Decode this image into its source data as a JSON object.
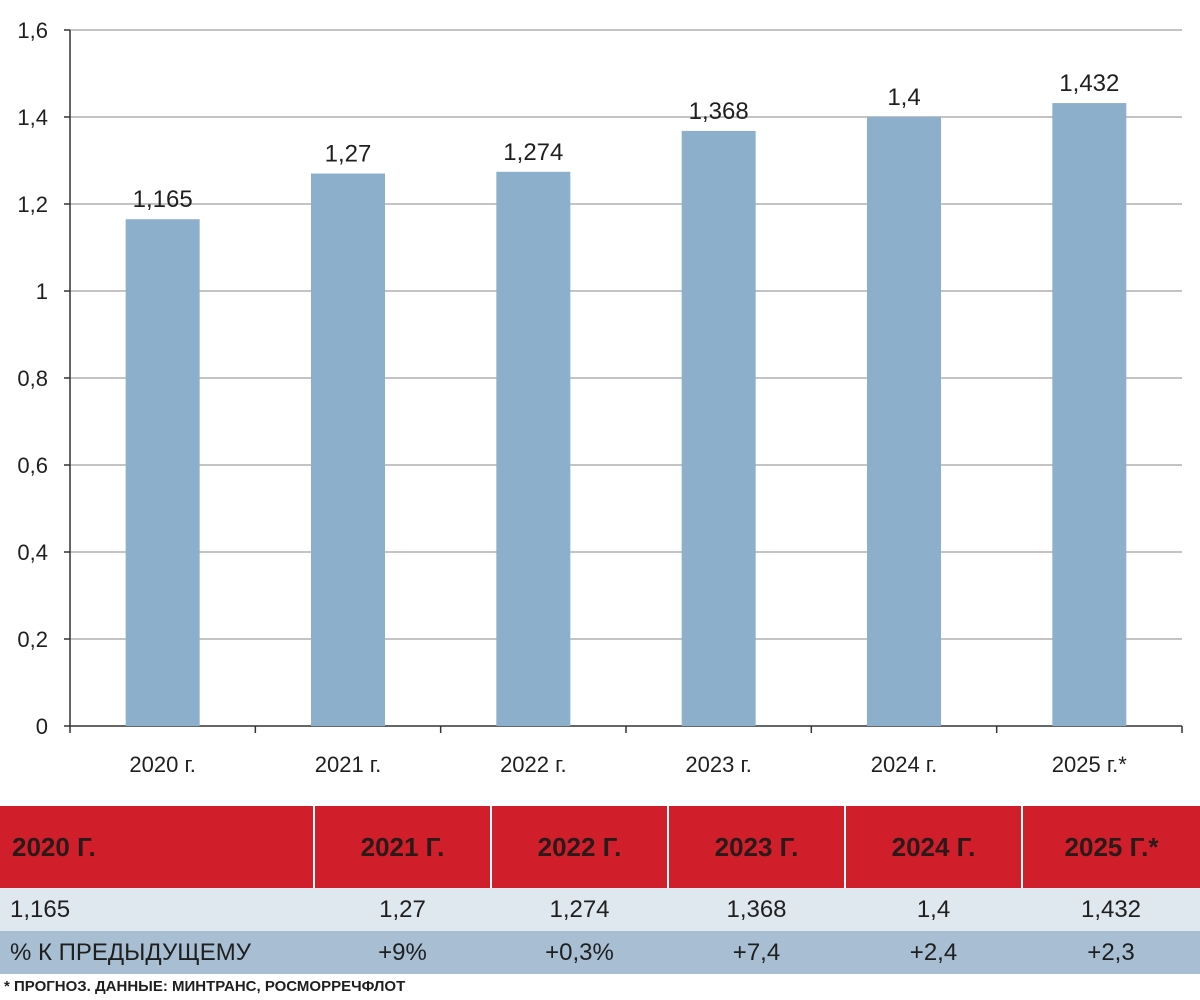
{
  "colors": {
    "bar": "#8cafcb",
    "header": "#d01f2b",
    "row1": "#dfe7ef",
    "row2": "#a8bfd3",
    "grid": "#8a8a8a"
  },
  "chart_data": {
    "type": "bar",
    "categories": [
      "2020 г.",
      "2021 г.",
      "2022 г.",
      "2023 г.",
      "2024 г.",
      "2025 г.*"
    ],
    "values": [
      1.165,
      1.27,
      1.274,
      1.368,
      1.4,
      1.432
    ],
    "value_labels": [
      "1,165",
      "1,27",
      "1,274",
      "1,368",
      "1,4",
      "1,432"
    ],
    "yticks": [
      "0",
      "0,2",
      "0,4",
      "0,6",
      "0,8",
      "1",
      "1,2",
      "1,4",
      "1,6"
    ],
    "ylim": [
      0,
      1.6
    ],
    "grid": true
  },
  "table": {
    "headers": [
      "2020 Г.",
      "2021 Г.",
      "2022 Г.",
      "2023 Г.",
      "2024 Г.",
      "2025 Г.*"
    ],
    "values": [
      "1,165",
      "1,27",
      "1,274",
      "1,368",
      "1,4",
      "1,432"
    ],
    "pct_label": "% К ПРЕДЫДУЩЕМУ",
    "pct_values": [
      "+9%",
      "+0,3%",
      "+7,4",
      "+2,4",
      "+2,3"
    ]
  },
  "footnote": "* ПРОГНОЗ. ДАННЫЕ: МИНТРАНС, РОСМОРРЕЧФЛОТ"
}
